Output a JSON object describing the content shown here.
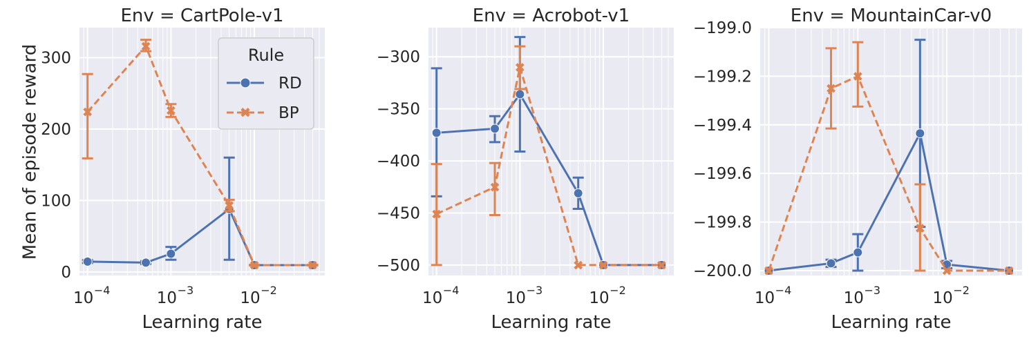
{
  "figure": {
    "ylabel": "Mean of episode reward",
    "xlabel": "Learning rate"
  },
  "legend": {
    "title": "Rule",
    "entries": [
      "RD",
      "BP"
    ]
  },
  "colors": {
    "RD": "#4c72b0",
    "BP": "#dd8452",
    "background": "#eaeaf2",
    "grid": "#ffffff"
  },
  "chart_data": [
    {
      "type": "line",
      "title": "Env = CartPole-v1",
      "xlabel": "Learning rate",
      "ylabel": "Mean of episode reward",
      "xscale": "log",
      "xlim": [
        8e-05,
        0.07
      ],
      "ylim": [
        -5,
        342
      ],
      "xticks": [
        "10^-4",
        "10^-3",
        "10^-2"
      ],
      "yticks": [
        0,
        100,
        200,
        300
      ],
      "legend": "upper right",
      "x": [
        0.0001,
        0.0005,
        0.001,
        0.005,
        0.01,
        0.05
      ],
      "series": [
        {
          "name": "RD",
          "values": [
            14.5,
            13,
            25.5,
            88,
            9.5,
            9.5
          ],
          "err_low": [
            12.5,
            11,
            17,
            17,
            9,
            9
          ],
          "err_high": [
            16.5,
            15,
            35,
            160,
            10,
            10
          ]
        },
        {
          "name": "BP",
          "values": [
            224,
            316,
            226,
            93,
            9.5,
            9.5
          ],
          "err_low": [
            159,
            309,
            217,
            85,
            9,
            9
          ],
          "err_high": [
            277,
            325,
            235,
            101,
            10,
            10
          ]
        }
      ]
    },
    {
      "type": "line",
      "title": "Env = Acrobot-v1",
      "xlabel": "Learning rate",
      "xscale": "log",
      "xlim": [
        8e-05,
        0.07
      ],
      "ylim": [
        -510,
        -272
      ],
      "xticks": [
        "10^-4",
        "10^-3",
        "10^-2"
      ],
      "yticks": [
        -500,
        -450,
        -400,
        -350,
        -300
      ],
      "x": [
        0.0001,
        0.0005,
        0.001,
        0.005,
        0.01,
        0.05
      ],
      "series": [
        {
          "name": "RD",
          "values": [
            -373,
            -369,
            -336,
            -431,
            -500,
            -500
          ],
          "err_low": [
            -434,
            -382,
            -391,
            -446,
            -500,
            -500
          ],
          "err_high": [
            -311,
            -357,
            -281,
            -416,
            -500,
            -500
          ]
        },
        {
          "name": "BP",
          "values": [
            -451,
            -425,
            -310,
            -500,
            -500,
            -500
          ],
          "err_low": [
            -500,
            -452,
            -331,
            -500,
            -500,
            -500
          ],
          "err_high": [
            -403,
            -402,
            -290,
            -500,
            -500,
            -500
          ]
        }
      ]
    },
    {
      "type": "line",
      "title": "Env = MountainCar-v0",
      "xlabel": "Learning rate",
      "xscale": "log",
      "xlim": [
        8e-05,
        0.07
      ],
      "ylim": [
        -200.02,
        -199.0
      ],
      "xticks": [
        "10^-4",
        "10^-3",
        "10^-2"
      ],
      "yticks": [
        -200.0,
        -199.8,
        -199.6,
        -199.4,
        -199.2,
        -199.0
      ],
      "ytick_labels": [
        "−200.0",
        "−199.8",
        "−199.6",
        "−199.4",
        "−199.2",
        "−199.0"
      ],
      "x": [
        0.0001,
        0.0005,
        0.001,
        0.005,
        0.01,
        0.05
      ],
      "series": [
        {
          "name": "RD",
          "values": [
            -200.0,
            -199.97,
            -199.925,
            -199.435,
            -199.975,
            -200.0
          ],
          "err_low": [
            -200.0,
            -199.985,
            -200.0,
            -199.82,
            -199.99,
            -200.0
          ],
          "err_high": [
            -200.0,
            -199.955,
            -199.85,
            -199.05,
            -199.96,
            -200.0
          ]
        },
        {
          "name": "BP",
          "values": [
            -200.0,
            -199.25,
            -199.2,
            -199.825,
            -200.0,
            -200.0
          ],
          "err_low": [
            -200.0,
            -199.415,
            -199.325,
            -200.0,
            -200.0,
            -200.0
          ],
          "err_high": [
            -200.0,
            -199.085,
            -199.06,
            -199.645,
            -200.0,
            -200.0
          ]
        }
      ]
    }
  ]
}
